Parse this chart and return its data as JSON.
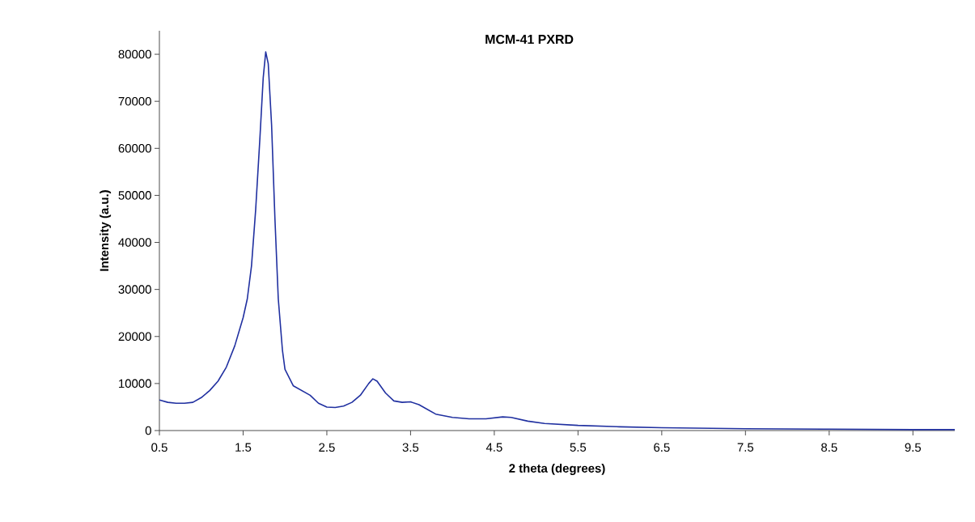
{
  "chart_data": {
    "type": "line",
    "title": "MCM-41 PXRD",
    "xlabel": "2 theta (degrees)",
    "ylabel": "Intensity (a.u.)",
    "xlim": [
      0.5,
      10
    ],
    "xticks": [
      0.5,
      1.5,
      2.5,
      3.5,
      4.5,
      5.5,
      6.5,
      7.5,
      8.5,
      9.5
    ],
    "ylim": [
      0,
      85000
    ],
    "yticks": [
      0,
      10000,
      20000,
      30000,
      40000,
      50000,
      60000,
      70000,
      80000
    ],
    "marker": "none",
    "line_style": "solid",
    "series": [
      {
        "color": "#2030a0",
        "x": [
          0.5,
          0.6,
          0.7,
          0.8,
          0.9,
          1.0,
          1.1,
          1.2,
          1.3,
          1.4,
          1.5,
          1.55,
          1.6,
          1.65,
          1.7,
          1.74,
          1.77,
          1.8,
          1.84,
          1.88,
          1.92,
          1.97,
          2.0,
          2.1,
          2.2,
          2.3,
          2.4,
          2.5,
          2.6,
          2.7,
          2.8,
          2.9,
          3.0,
          3.05,
          3.1,
          3.2,
          3.3,
          3.4,
          3.5,
          3.6,
          3.7,
          3.8,
          4.0,
          4.2,
          4.4,
          4.6,
          4.7,
          4.9,
          5.1,
          5.5,
          6.0,
          6.5,
          7.0,
          7.5,
          8.5,
          9.5,
          10.0
        ],
        "values": [
          6500,
          6000,
          5800,
          5800,
          6000,
          7000,
          8500,
          10500,
          13500,
          18000,
          24000,
          28000,
          35000,
          47000,
          62000,
          75000,
          80500,
          78000,
          65000,
          45000,
          28000,
          17000,
          13000,
          9500,
          8500,
          7500,
          5800,
          5000,
          4900,
          5200,
          6000,
          7500,
          10000,
          11000,
          10500,
          8000,
          6300,
          6000,
          6100,
          5500,
          4500,
          3500,
          2800,
          2500,
          2500,
          2900,
          2800,
          2000,
          1500,
          1100,
          800,
          600,
          500,
          400,
          300,
          200,
          200
        ]
      }
    ]
  }
}
